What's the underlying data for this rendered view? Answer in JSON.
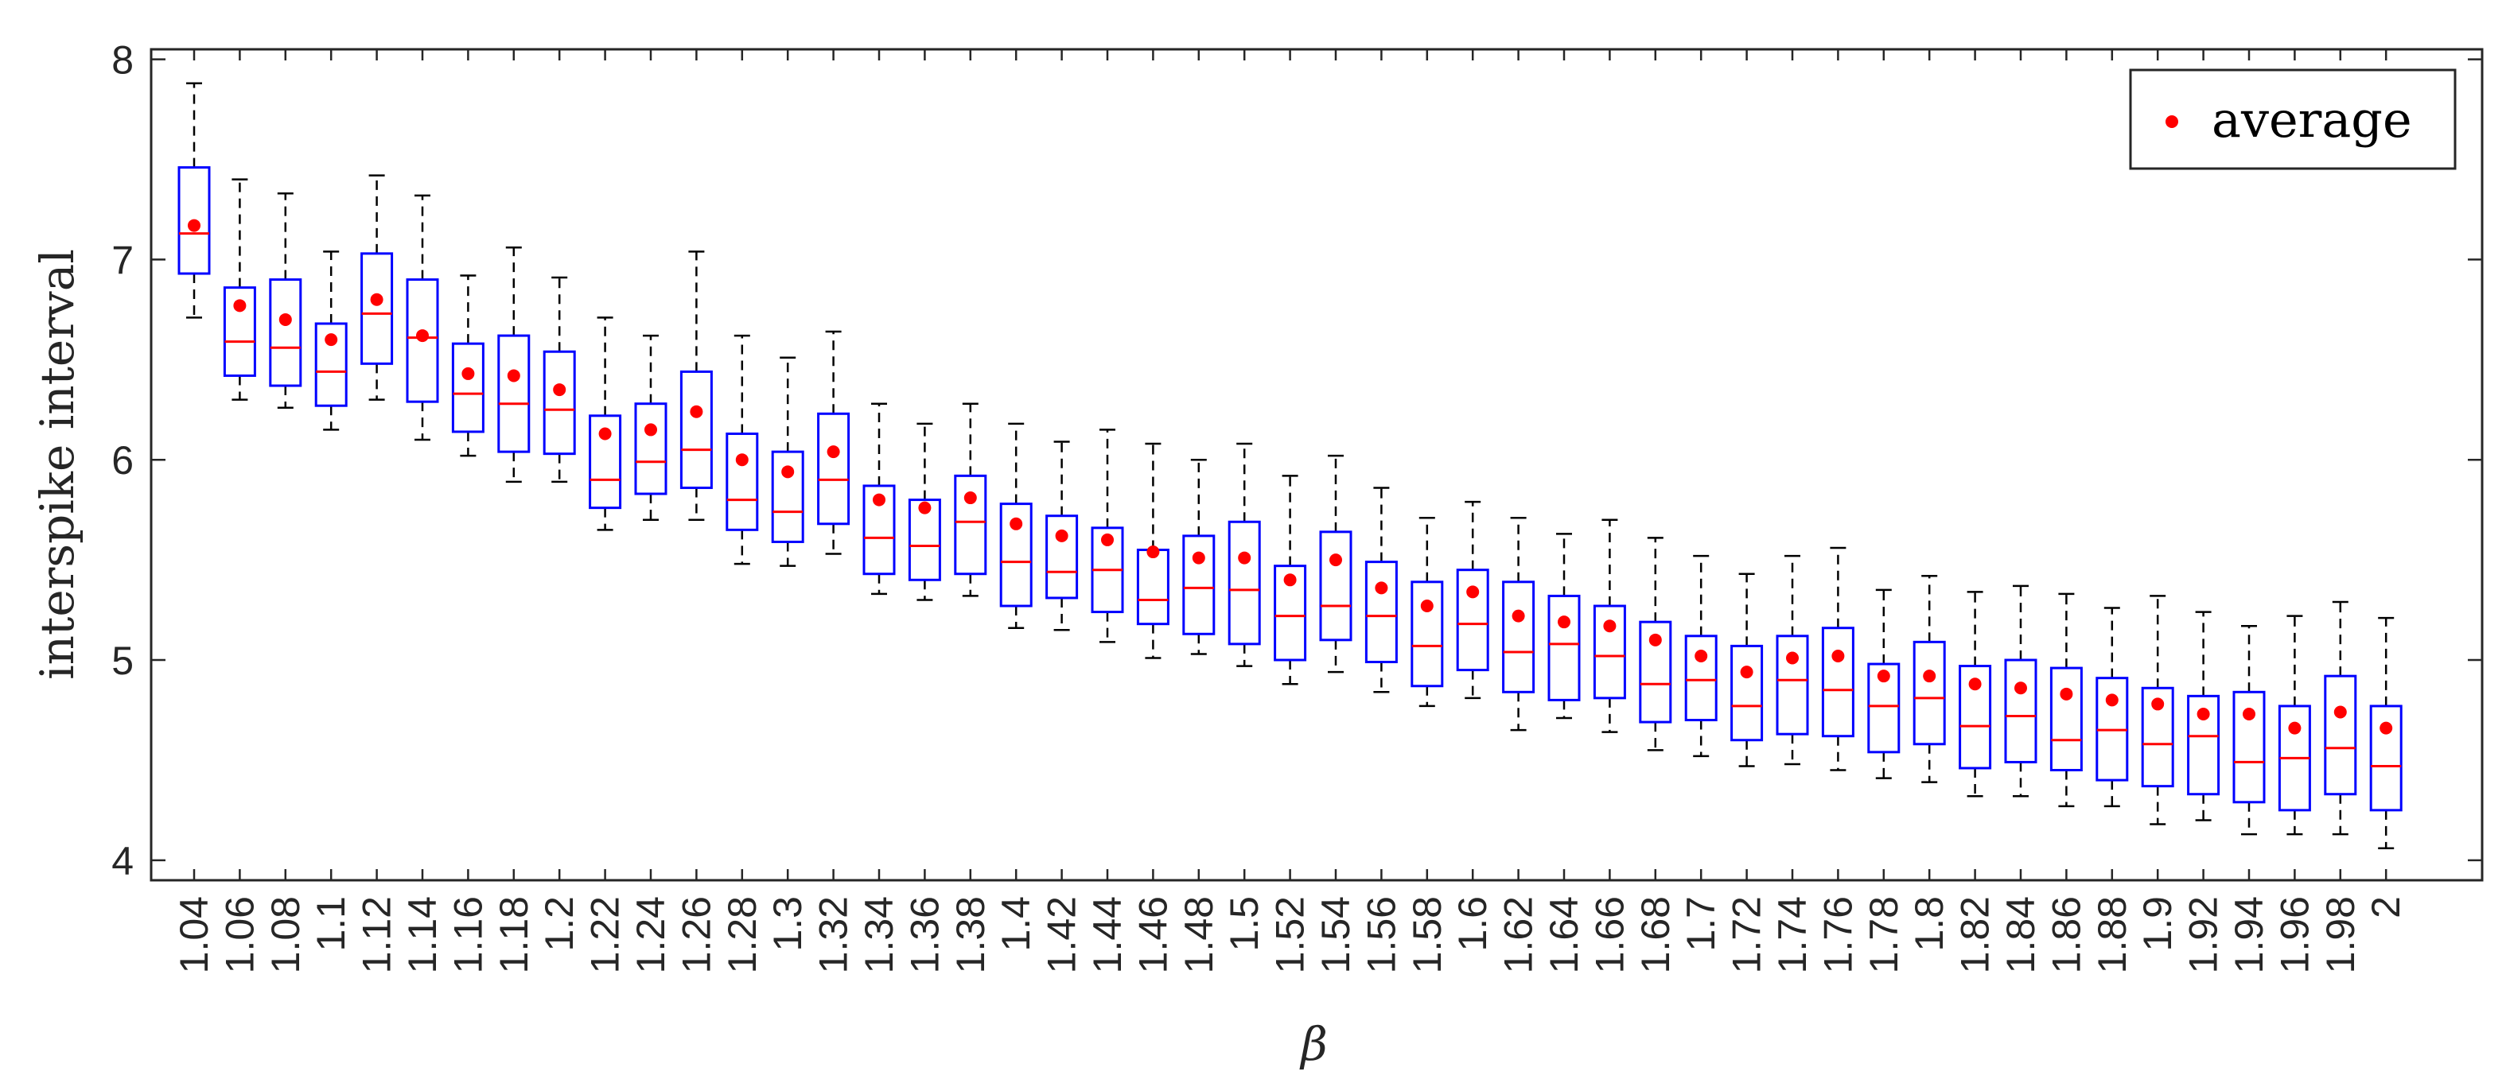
{
  "chart_data": {
    "type": "boxplot",
    "xlabel": "β",
    "ylabel": "interspike interval",
    "ylim": [
      3.9,
      8.05
    ],
    "yticks": [
      4,
      5,
      6,
      7,
      8
    ],
    "legend": {
      "label": "average",
      "position": "top-right"
    },
    "categories": [
      "1.04",
      "1.06",
      "1.08",
      "1.1",
      "1.12",
      "1.14",
      "1.16",
      "1.18",
      "1.2",
      "1.22",
      "1.24",
      "1.26",
      "1.28",
      "1.3",
      "1.32",
      "1.34",
      "1.36",
      "1.38",
      "1.4",
      "1.42",
      "1.44",
      "1.46",
      "1.48",
      "1.5",
      "1.52",
      "1.54",
      "1.56",
      "1.58",
      "1.6",
      "1.62",
      "1.64",
      "1.66",
      "1.68",
      "1.7",
      "1.72",
      "1.74",
      "1.76",
      "1.78",
      "1.8",
      "1.82",
      "1.84",
      "1.86",
      "1.88",
      "1.9",
      "1.92",
      "1.94",
      "1.96",
      "1.98",
      "2"
    ],
    "whisker_low": [
      6.71,
      6.3,
      6.26,
      6.15,
      6.3,
      6.1,
      6.02,
      5.89,
      5.89,
      5.65,
      5.7,
      5.7,
      5.48,
      5.47,
      5.53,
      5.33,
      5.3,
      5.32,
      5.16,
      5.15,
      5.09,
      5.01,
      5.03,
      4.97,
      4.88,
      4.94,
      4.84,
      4.77,
      4.81,
      4.65,
      4.71,
      4.64,
      4.55,
      4.52,
      4.47,
      4.48,
      4.45,
      4.41,
      4.39,
      4.32,
      4.32,
      4.27,
      4.27,
      4.18,
      4.2,
      4.13,
      4.13,
      4.13,
      4.06
    ],
    "q1": [
      6.93,
      6.42,
      6.37,
      6.27,
      6.48,
      6.29,
      6.14,
      6.04,
      6.03,
      5.76,
      5.83,
      5.86,
      5.65,
      5.59,
      5.68,
      5.43,
      5.4,
      5.43,
      5.27,
      5.31,
      5.24,
      5.18,
      5.13,
      5.08,
      5.0,
      5.1,
      4.99,
      4.87,
      4.95,
      4.84,
      4.8,
      4.81,
      4.69,
      4.7,
      4.6,
      4.63,
      4.62,
      4.54,
      4.58,
      4.46,
      4.49,
      4.45,
      4.4,
      4.37,
      4.33,
      4.29,
      4.25,
      4.33,
      4.25
    ],
    "median": [
      7.13,
      6.59,
      6.56,
      6.44,
      6.73,
      6.61,
      6.33,
      6.28,
      6.25,
      5.9,
      5.99,
      6.05,
      5.8,
      5.74,
      5.9,
      5.61,
      5.57,
      5.69,
      5.49,
      5.44,
      5.45,
      5.3,
      5.36,
      5.35,
      5.22,
      5.27,
      5.22,
      5.07,
      5.18,
      5.04,
      5.08,
      5.02,
      4.88,
      4.9,
      4.77,
      4.9,
      4.85,
      4.77,
      4.81,
      4.67,
      4.72,
      4.6,
      4.65,
      4.58,
      4.62,
      4.49,
      4.51,
      4.56,
      4.47
    ],
    "q3": [
      7.46,
      6.86,
      6.9,
      6.68,
      7.03,
      6.9,
      6.58,
      6.62,
      6.54,
      6.22,
      6.28,
      6.44,
      6.13,
      6.04,
      6.23,
      5.87,
      5.8,
      5.92,
      5.78,
      5.72,
      5.66,
      5.55,
      5.62,
      5.69,
      5.47,
      5.64,
      5.49,
      5.39,
      5.45,
      5.39,
      5.32,
      5.27,
      5.19,
      5.12,
      5.07,
      5.12,
      5.16,
      4.98,
      5.09,
      4.97,
      5.0,
      4.96,
      4.91,
      4.86,
      4.82,
      4.84,
      4.77,
      4.92,
      4.77
    ],
    "whisker_high": [
      7.88,
      7.4,
      7.33,
      7.04,
      7.42,
      7.32,
      6.92,
      7.06,
      6.91,
      6.71,
      6.62,
      7.04,
      6.62,
      6.51,
      6.64,
      6.28,
      6.18,
      6.28,
      6.18,
      6.09,
      6.15,
      6.08,
      6.0,
      6.08,
      5.92,
      6.02,
      5.86,
      5.71,
      5.79,
      5.71,
      5.63,
      5.7,
      5.61,
      5.52,
      5.43,
      5.52,
      5.56,
      5.35,
      5.42,
      5.34,
      5.37,
      5.33,
      5.26,
      5.32,
      5.24,
      5.17,
      5.22,
      5.29,
      5.21
    ],
    "mean": [
      7.17,
      6.77,
      6.7,
      6.6,
      6.8,
      6.62,
      6.43,
      6.42,
      6.35,
      6.13,
      6.15,
      6.24,
      6.0,
      5.94,
      6.04,
      5.8,
      5.76,
      5.81,
      5.68,
      5.62,
      5.6,
      5.54,
      5.51,
      5.51,
      5.4,
      5.5,
      5.36,
      5.27,
      5.34,
      5.22,
      5.19,
      5.17,
      5.1,
      5.02,
      4.94,
      5.01,
      5.02,
      4.92,
      4.92,
      4.88,
      4.86,
      4.83,
      4.8,
      4.78,
      4.73,
      4.73,
      4.66,
      4.74,
      4.66
    ],
    "grid": false,
    "colors": {
      "box": "#0000ff",
      "median": "#ff0000",
      "mean": "#ff0000",
      "whisker": "#000000",
      "axis": "#262626"
    }
  }
}
